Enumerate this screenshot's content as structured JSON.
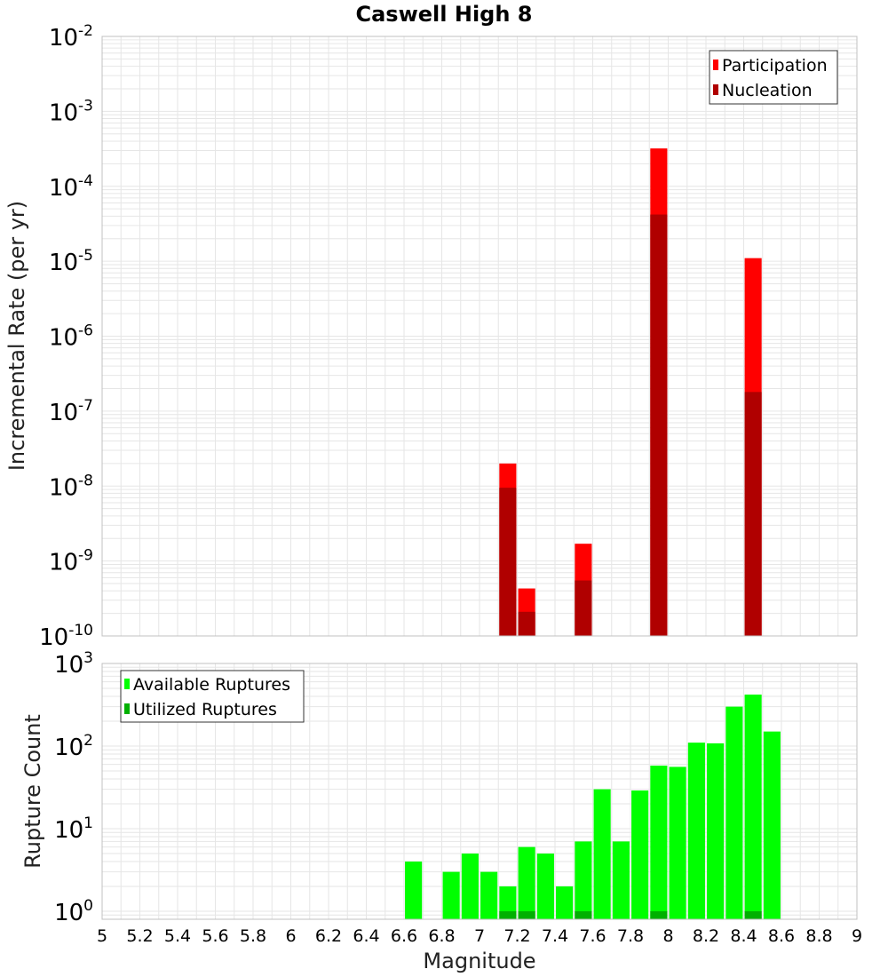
{
  "colors": {
    "participation": "#ff0000",
    "nucleation": "#b00000",
    "available": "#00ff00",
    "utilized": "#00b000",
    "grid": "#e6e6e6",
    "frame": "#c0c0c0"
  },
  "chart_data": [
    {
      "type": "bar",
      "title": "Caswell High 8",
      "xlabel": "",
      "ylabel": "Incremental Rate (per yr)",
      "yscale": "log",
      "ylim": [
        1e-10,
        0.01
      ],
      "xlim": [
        5,
        9
      ],
      "bar_width": 0.09,
      "legend": [
        "Participation",
        "Nucleation"
      ],
      "legend_position": "top-right",
      "yticks": [
        {
          "exp": -2,
          "label_base": "10",
          "label_exp": "-2"
        },
        {
          "exp": -3,
          "label_base": "10",
          "label_exp": "-3"
        },
        {
          "exp": -4,
          "label_base": "10",
          "label_exp": "-4"
        },
        {
          "exp": -5,
          "label_base": "10",
          "label_exp": "-5"
        },
        {
          "exp": -6,
          "label_base": "10",
          "label_exp": "-6"
        },
        {
          "exp": -7,
          "label_base": "10",
          "label_exp": "-7"
        },
        {
          "exp": -8,
          "label_base": "10",
          "label_exp": "-8"
        },
        {
          "exp": -9,
          "label_base": "10",
          "label_exp": "-9"
        },
        {
          "exp": -10,
          "label_base": "10",
          "label_exp": "-10"
        }
      ],
      "series": [
        {
          "name": "Participation",
          "x": [
            7.15,
            7.25,
            7.55,
            7.95,
            8.45
          ],
          "values": [
            2e-08,
            4.3e-10,
            1.7e-09,
            0.00032,
            1.1e-05
          ]
        },
        {
          "name": "Nucleation",
          "x": [
            7.15,
            7.25,
            7.55,
            7.95,
            8.45
          ],
          "values": [
            9.5e-09,
            2.1e-10,
            5.5e-10,
            4.2e-05,
            1.8e-07
          ]
        }
      ]
    },
    {
      "type": "bar",
      "title": "",
      "xlabel": "Magnitude",
      "ylabel": "Rupture Count",
      "yscale": "log",
      "ylim": [
        0.8,
        1000
      ],
      "xlim": [
        5,
        9
      ],
      "bar_width": 0.09,
      "legend": [
        "Available Ruptures",
        "Utilized Ruptures"
      ],
      "legend_position": "top-left",
      "xticks": [
        "5",
        "5.2",
        "5.4",
        "5.6",
        "5.8",
        "6",
        "6.2",
        "6.4",
        "6.6",
        "6.8",
        "7",
        "7.2",
        "7.4",
        "7.6",
        "7.8",
        "8",
        "8.2",
        "8.4",
        "8.6",
        "8.8",
        "9"
      ],
      "yticks": [
        {
          "value": 1,
          "label_base": "10",
          "label_exp": "0"
        },
        {
          "value": 10,
          "label_base": "10",
          "label_exp": "1"
        },
        {
          "value": 100,
          "label_base": "10",
          "label_exp": "2"
        },
        {
          "value": 1000,
          "label_base": "10",
          "label_exp": "3"
        }
      ],
      "series": [
        {
          "name": "Available Ruptures",
          "x": [
            6.65,
            6.85,
            6.95,
            7.05,
            7.15,
            7.25,
            7.35,
            7.45,
            7.55,
            7.65,
            7.75,
            7.85,
            7.95,
            8.05,
            8.15,
            8.25,
            8.35,
            8.45,
            8.55
          ],
          "values": [
            4,
            3,
            5,
            3,
            2,
            6,
            5,
            2,
            7,
            30,
            7,
            29,
            58,
            56,
            110,
            108,
            300,
            420,
            150
          ]
        },
        {
          "name": "Utilized Ruptures",
          "x": [
            7.15,
            7.25,
            7.55,
            7.95,
            8.45
          ],
          "values": [
            1,
            1,
            1,
            1,
            1
          ]
        }
      ]
    }
  ]
}
